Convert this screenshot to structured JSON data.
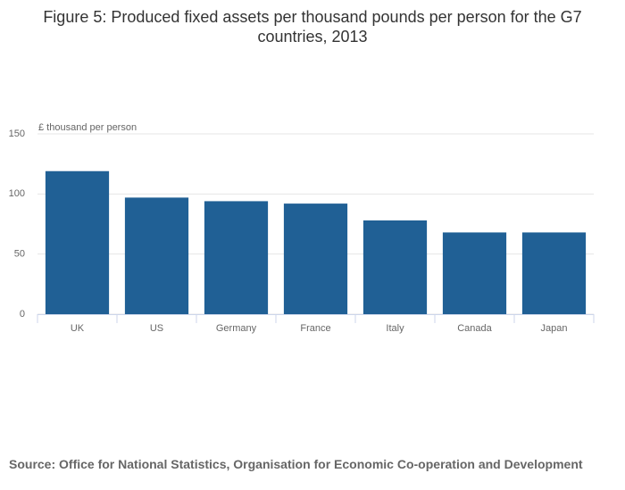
{
  "chart_data": {
    "type": "bar",
    "title": "Figure 5: Produced fixed assets per thousand pounds per person for the G7 countries, 2013",
    "y_axis_label": "£ thousand per person",
    "categories": [
      "UK",
      "US",
      "Germany",
      "France",
      "Italy",
      "Canada",
      "Japan"
    ],
    "values": [
      119,
      97,
      94,
      92,
      78,
      68,
      68
    ],
    "color": "#206095",
    "ylim": [
      0,
      150
    ],
    "yticks": [
      0,
      50,
      100,
      150
    ],
    "grid": true,
    "source": "Source: Office for National Statistics, Organisation for Economic Co-operation and Development"
  }
}
